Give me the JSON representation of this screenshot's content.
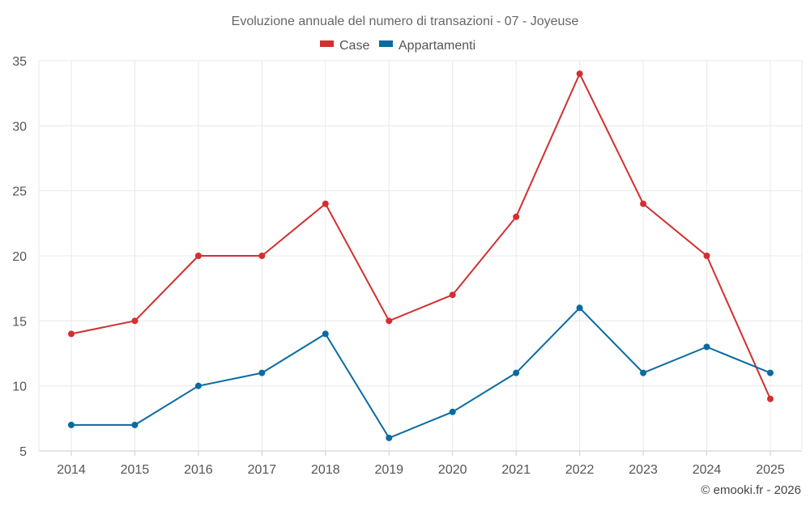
{
  "chart_data": {
    "type": "line",
    "title": "Evoluzione annuale del numero di transazioni - 07 - Joyeuse",
    "categories": [
      "2014",
      "2015",
      "2016",
      "2017",
      "2018",
      "2019",
      "2020",
      "2021",
      "2022",
      "2023",
      "2024",
      "2025"
    ],
    "series": [
      {
        "name": "Case",
        "color": "#d32f2f",
        "values": [
          14,
          15,
          20,
          20,
          24,
          15,
          17,
          23,
          34,
          24,
          20,
          9
        ]
      },
      {
        "name": "Appartamenti",
        "color": "#0a6aa1",
        "values": [
          7,
          7,
          10,
          11,
          14,
          6,
          8,
          11,
          16,
          11,
          13,
          11
        ]
      }
    ],
    "ylim": [
      5,
      35
    ],
    "yticks": [
      5,
      10,
      15,
      20,
      25,
      30,
      35
    ],
    "ytick_labels": [
      "5",
      "10",
      "15",
      "20",
      "25",
      "30",
      "35"
    ],
    "xlabel": "",
    "ylabel": "",
    "grid": true,
    "legend": "top-center"
  },
  "credit": "© emooki.fr - 2026"
}
